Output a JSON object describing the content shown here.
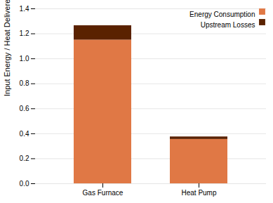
{
  "chart_data": {
    "type": "bar",
    "stacked": true,
    "categories": [
      "Gas Furnace",
      "Heat Pump"
    ],
    "series": [
      {
        "name": "Energy Consumption",
        "color": "#E07845",
        "values": [
          1.15,
          0.355
        ]
      },
      {
        "name": "Upstream Losses",
        "color": "#5A2200",
        "values": [
          0.115,
          0.02
        ]
      }
    ],
    "ylabel": "Input Energy / Heat Delivered",
    "ylim": [
      0,
      1.4
    ],
    "yticks": [
      {
        "value": 0,
        "label": "0.0"
      },
      0.2,
      0.4,
      0.6,
      0.8,
      {
        "value": 1,
        "label": "1.0"
      },
      1.2,
      1.4
    ],
    "grid": true,
    "legend": "upper right"
  }
}
